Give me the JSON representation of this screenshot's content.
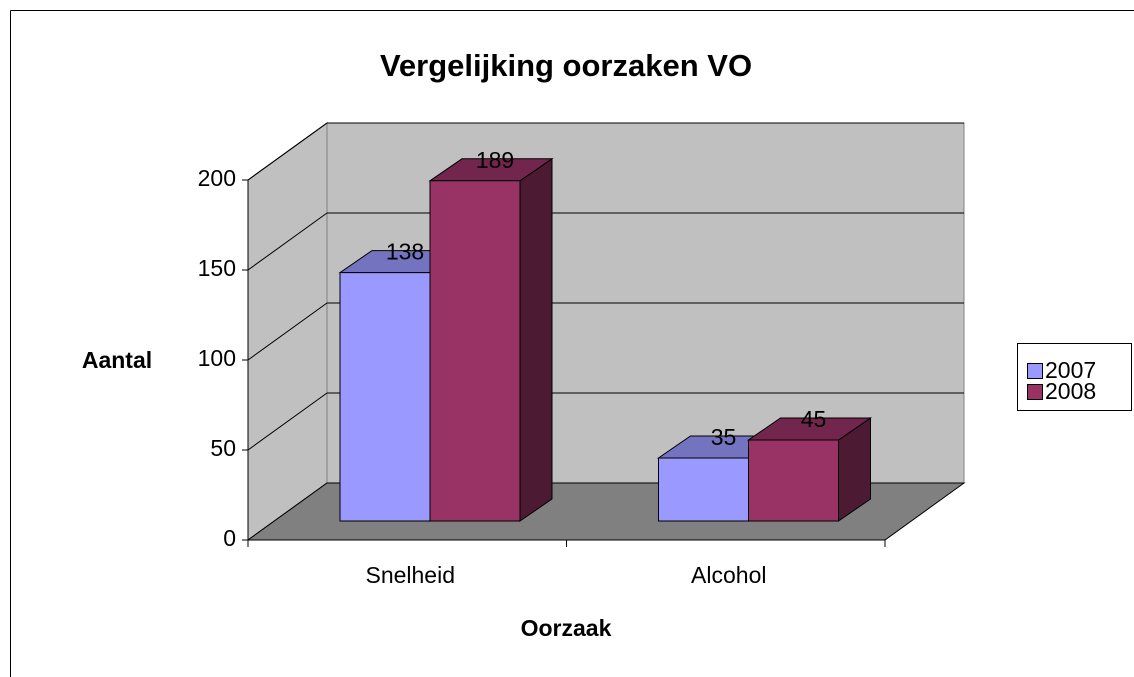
{
  "chart_data": {
    "type": "bar3d",
    "title": "Vergelijking oorzaken VO",
    "categories": [
      "Snelheid",
      "Alcohol"
    ],
    "series": [
      {
        "name": "2007",
        "color": "#9999ff",
        "values": [
          138,
          35
        ]
      },
      {
        "name": "2008",
        "color": "#993366",
        "values": [
          189,
          45
        ]
      }
    ],
    "x_label": "Oorzaak",
    "y_label": "Aantal",
    "ylim": [
      0,
      200
    ],
    "yticks": [
      0,
      50,
      100,
      150,
      200
    ],
    "grid": true,
    "legend": "right"
  }
}
